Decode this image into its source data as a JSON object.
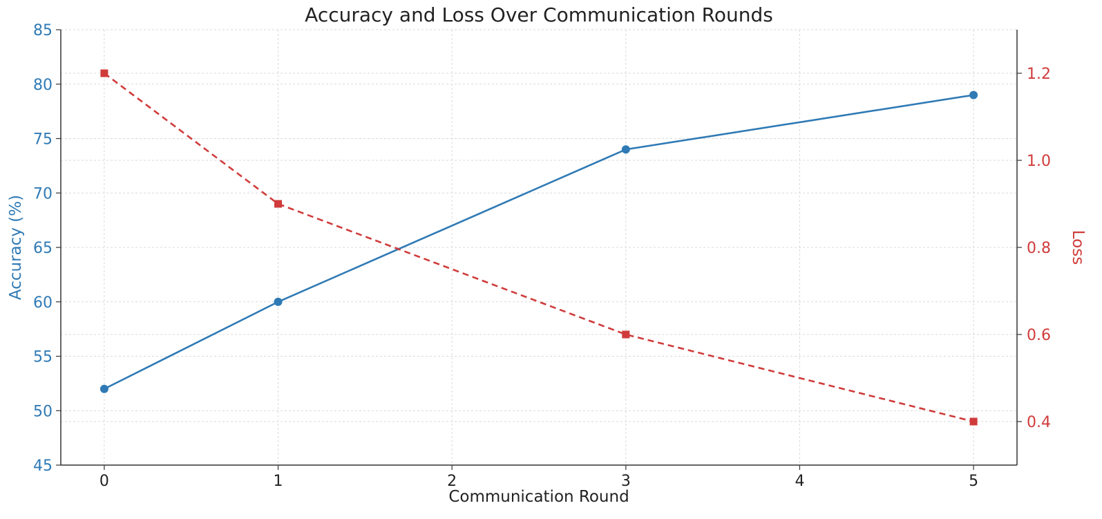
{
  "chart_data": {
    "type": "line",
    "title": "Accuracy and Loss Over Communication Rounds",
    "xlabel": "Communication Round",
    "x_ticks": [
      0,
      1,
      2,
      3,
      4,
      5
    ],
    "xlim": [
      -0.25,
      5.25
    ],
    "y_left": {
      "label": "Accuracy (%)",
      "ylim": [
        45,
        85
      ],
      "ticks": [
        45,
        50,
        55,
        60,
        65,
        70,
        75,
        80,
        85
      ],
      "color": "#2f7ab5"
    },
    "y_right": {
      "label": "Loss",
      "ylim": [
        0.3,
        1.3
      ],
      "ticks": [
        "0.4",
        "0.6",
        "0.8",
        "1.0",
        "1.2"
      ],
      "color": "#d03b3b"
    },
    "grid": true,
    "series": [
      {
        "axis": "left",
        "x": [
          0,
          1,
          3,
          5
        ],
        "values": [
          52,
          60,
          74,
          79
        ],
        "color": "#2f7ab5",
        "line_style": "solid",
        "marker": "circle"
      },
      {
        "axis": "right",
        "x": [
          0,
          1,
          3,
          5
        ],
        "values": [
          1.2,
          0.9,
          0.6,
          0.4
        ],
        "color": "#d03b3b",
        "line_style": "dashed",
        "marker": "square"
      }
    ]
  }
}
